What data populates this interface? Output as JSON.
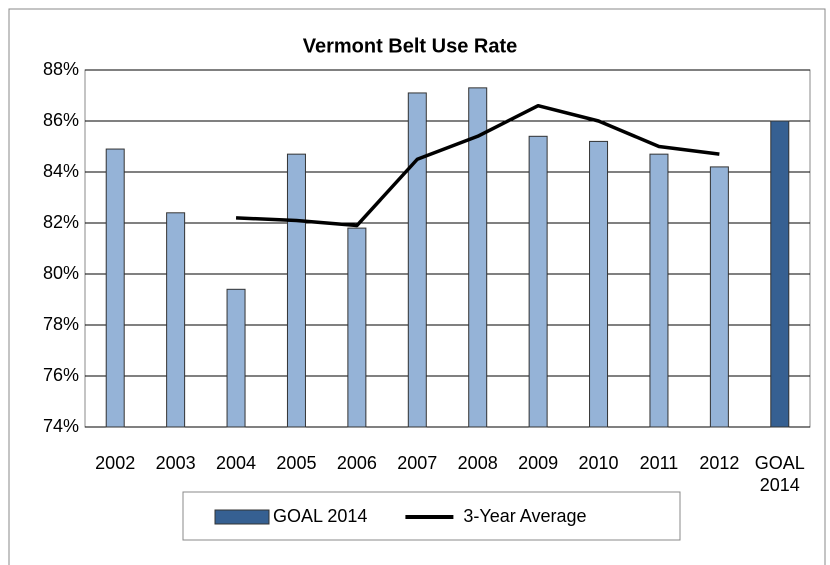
{
  "chart_data": {
    "type": "bar",
    "title": "Vermont Belt Use Rate",
    "categories": [
      "2002",
      "2003",
      "2004",
      "2005",
      "2006",
      "2007",
      "2008",
      "2009",
      "2010",
      "2011",
      "2012",
      "GOAL 2014"
    ],
    "series": [
      {
        "color": "#95b3d7",
        "values": [
          84.9,
          82.4,
          79.4,
          84.7,
          81.8,
          87.1,
          87.3,
          85.4,
          85.2,
          84.7,
          84.2,
          null
        ]
      },
      {
        "name": "GOAL 2014",
        "color": "#366092",
        "values": [
          null,
          null,
          null,
          null,
          null,
          null,
          null,
          null,
          null,
          null,
          null,
          86.0
        ]
      },
      {
        "name": "3-Year Average",
        "type": "line",
        "color": "#000000",
        "values": [
          null,
          null,
          82.2,
          82.1,
          81.9,
          84.5,
          85.4,
          86.6,
          86.0,
          85.0,
          84.7,
          null
        ]
      }
    ],
    "ylim": [
      74,
      88
    ],
    "yticks": [
      {
        "value": 74,
        "label": "74%"
      },
      {
        "value": 76,
        "label": "76%"
      },
      {
        "value": 78,
        "label": "78%"
      },
      {
        "value": 80,
        "label": "80%"
      },
      {
        "value": 82,
        "label": "82%"
      },
      {
        "value": 84,
        "label": "84%"
      },
      {
        "value": 86,
        "label": "86%"
      },
      {
        "value": 88,
        "label": "88%"
      }
    ],
    "grid": true,
    "legend": "bottom"
  }
}
